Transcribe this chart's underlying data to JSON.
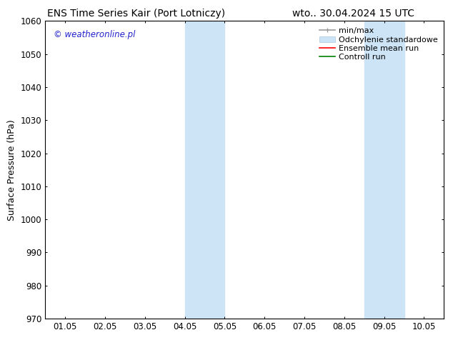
{
  "title_left": "ENS Time Series Kair (Port Lotniczy)",
  "title_right": "wto.. 30.04.2024 15 UTC",
  "ylabel": "Surface Pressure (hPa)",
  "ylim": [
    970,
    1060
  ],
  "yticks": [
    970,
    980,
    990,
    1000,
    1010,
    1020,
    1030,
    1040,
    1050,
    1060
  ],
  "xtick_labels": [
    "01.05",
    "02.05",
    "03.05",
    "04.05",
    "05.05",
    "06.05",
    "07.05",
    "08.05",
    "09.05",
    "10.05"
  ],
  "xlim_start": 0,
  "xlim_end": 9,
  "shaded_regions": [
    {
      "x_start": 3.0,
      "x_end": 4.0
    },
    {
      "x_start": 7.5,
      "x_end": 8.5
    }
  ],
  "shaded_color": "#cce4f5",
  "watermark": "© weatheronline.pl",
  "watermark_color": "#2222cc",
  "background_color": "#ffffff",
  "title_fontsize": 10,
  "axis_label_fontsize": 9,
  "tick_fontsize": 8.5,
  "legend_fontsize": 8
}
